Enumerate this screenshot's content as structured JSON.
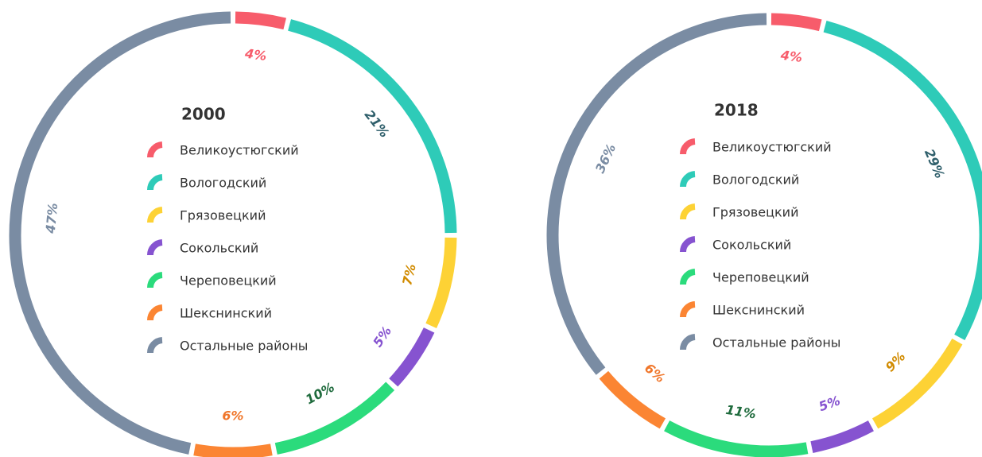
{
  "chart_data": [
    {
      "type": "donut",
      "title": "2000",
      "categories": [
        "Великоустюгский",
        "Вологодский",
        "Грязовецкий",
        "Сокольский",
        "Череповецкий",
        "Шекснинский",
        "Остальные районы"
      ],
      "values": [
        4,
        21,
        7,
        5,
        10,
        6,
        47
      ],
      "value_labels": [
        "4%",
        "21%",
        "7%",
        "5%",
        "10%",
        "6%",
        "47%"
      ],
      "colors": [
        "#f75c6b",
        "#2ecbb8",
        "#fdd235",
        "#8653d0",
        "#2bdb7c",
        "#fb8533",
        "#7a8ca3"
      ],
      "label_colors": [
        "#f75c6b",
        "#2f5f6b",
        "#d18b00",
        "#8653d0",
        "#1f6b3d",
        "#f0762a",
        "#7a8ca3"
      ]
    },
    {
      "type": "donut",
      "title": "2018",
      "categories": [
        "Великоустюгский",
        "Вологодский",
        "Грязовецкий",
        "Сокольский",
        "Череповецкий",
        "Шекснинский",
        "Остальные районы"
      ],
      "values": [
        4,
        29,
        9,
        5,
        11,
        6,
        36
      ],
      "value_labels": [
        "4%",
        "29%",
        "9%",
        "5%",
        "11%",
        "6%",
        "36%"
      ],
      "colors": [
        "#f75c6b",
        "#2ecbb8",
        "#fdd235",
        "#8653d0",
        "#2bdb7c",
        "#fb8533",
        "#7a8ca3"
      ],
      "label_colors": [
        "#f75c6b",
        "#2f5f6b",
        "#d18b00",
        "#8653d0",
        "#1f6b3d",
        "#f0762a",
        "#7a8ca3"
      ]
    }
  ]
}
